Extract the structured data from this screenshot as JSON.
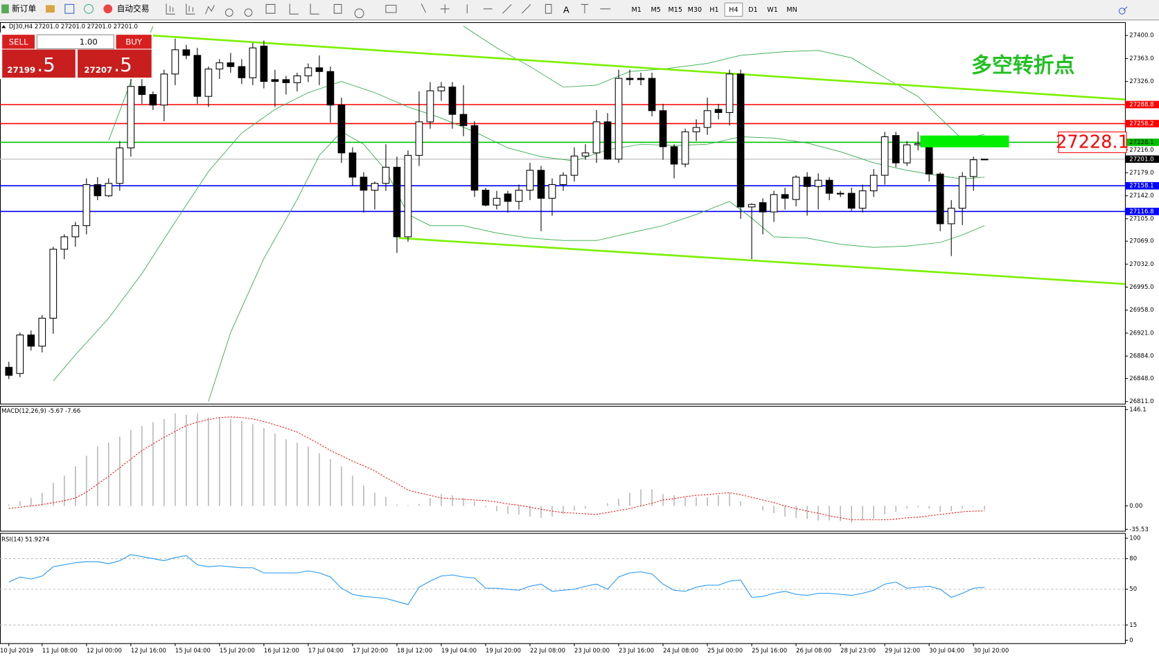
{
  "toolbar": {
    "new_order": "新订单",
    "auto_trading": "自动交易",
    "timeframes": [
      "M1",
      "M5",
      "M15",
      "M30",
      "H1",
      "H4",
      "D1",
      "W1",
      "MN"
    ],
    "active": "H4"
  },
  "trade_panel": {
    "sell": "SELL",
    "buy": "BUY",
    "lot": "1.00",
    "sell_price": "27199",
    "sell_pips": ".5",
    "buy_price": "27207",
    "buy_pips": ".5"
  },
  "chart_data": [
    {
      "type": "candlestick",
      "title": "DJ30,H4  27201.0 27201.0 27201.0 27201.0",
      "categories": [
        "10 Jul 2019",
        null,
        null,
        "11 Jul 08:00",
        null,
        null,
        null,
        "12 Jul 00:00",
        null,
        null,
        null,
        "12 Jul 16:00",
        null,
        null,
        null,
        "15 Jul 04:00",
        null,
        null,
        null,
        "15 Jul 20:00",
        null,
        null,
        null,
        "16 Jul 12:00",
        null,
        null,
        null,
        "17 Jul 04:00",
        null,
        null,
        null,
        "17 Jul 20:00",
        null,
        null,
        null,
        "18 Jul 12:00",
        null,
        null,
        null,
        "19 Jul 04:00",
        null,
        null,
        null,
        "19 Jul 20:00",
        null,
        null,
        null,
        "22 Jul 08:00",
        null,
        null,
        null,
        "23 Jul 00:00",
        null,
        null,
        null,
        "23 Jul 16:00",
        null,
        null,
        null,
        "24 Jul 08:00",
        null,
        null,
        null,
        "25 Jul 00:00",
        null,
        null,
        null,
        "25 Jul 16:00",
        null,
        null,
        null,
        "26 Jul 08:00",
        null,
        null,
        null,
        "28 Jul 23:00",
        null,
        null,
        null,
        "29 Jul 12:00",
        null,
        null,
        null,
        "30 Jul 04:00",
        null,
        null,
        null,
        "30 Jul 20:00",
        null
      ],
      "open": [
        26866,
        26856,
        26918,
        26900,
        26945,
        27056,
        27076,
        27094,
        27160,
        27142,
        27162,
        27219,
        27318,
        27305,
        27288,
        27338,
        27377,
        27368,
        27302,
        27346,
        27356,
        27350,
        27332,
        27383,
        27329,
        27329,
        27324,
        27335,
        27348,
        27342,
        27288,
        27211,
        27172,
        27151,
        27162,
        27188,
        27076,
        27207,
        27261,
        27311,
        27317,
        27273,
        27255,
        27151,
        27127,
        27145,
        27133,
        27151,
        27183,
        27138,
        27160,
        27175,
        27206,
        27211,
        27261,
        27201,
        27331,
        27331,
        27331,
        27279,
        27221,
        27193,
        27245,
        27252,
        27281,
        27276,
        27338,
        27124,
        27131,
        27116,
        27144,
        27136,
        27172,
        27157,
        27167,
        27146,
        27146,
        27122,
        27150,
        27175,
        27239,
        27195,
        27224,
        27220,
        27177,
        27097,
        27122,
        27173,
        27201
      ],
      "high": [
        26875,
        26922,
        26925,
        26950,
        27060,
        27080,
        27100,
        27170,
        27172,
        27170,
        27230,
        27340,
        27330,
        27310,
        27345,
        27395,
        27385,
        27380,
        27350,
        27362,
        27372,
        27362,
        27388,
        27392,
        27345,
        27335,
        27340,
        27355,
        27368,
        27350,
        27300,
        27220,
        27180,
        27165,
        27225,
        27205,
        27215,
        27310,
        27325,
        27325,
        27325,
        27320,
        27262,
        27155,
        27150,
        27150,
        27160,
        27195,
        27190,
        27170,
        27180,
        27220,
        27225,
        27280,
        27275,
        27345,
        27345,
        27340,
        27340,
        27290,
        27225,
        27250,
        27265,
        27300,
        27290,
        27345,
        27345,
        27130,
        27138,
        27150,
        27155,
        27175,
        27180,
        27178,
        27172,
        27150,
        27155,
        27160,
        27185,
        27245,
        27245,
        27230,
        27245,
        27228,
        27180,
        27135,
        27180,
        27205,
        27201
      ],
      "low": [
        26847,
        26850,
        26893,
        26890,
        26920,
        27040,
        27060,
        27080,
        27135,
        27140,
        27150,
        27205,
        27290,
        27280,
        27262,
        27320,
        27362,
        27290,
        27285,
        27330,
        27340,
        27322,
        27320,
        27315,
        27285,
        27305,
        27310,
        27325,
        27320,
        27260,
        27195,
        27158,
        27115,
        27120,
        27150,
        27050,
        27068,
        27190,
        27250,
        27295,
        27250,
        27238,
        27140,
        27125,
        27120,
        27115,
        27120,
        27135,
        27085,
        27110,
        27150,
        27165,
        27200,
        27195,
        27200,
        27195,
        27320,
        27320,
        27270,
        27200,
        27170,
        27188,
        27230,
        27240,
        27265,
        27255,
        27105,
        27040,
        27080,
        27100,
        27120,
        27125,
        27110,
        27120,
        27135,
        27140,
        27118,
        27115,
        27140,
        27160,
        27188,
        27190,
        27215,
        27165,
        27085,
        27045,
        27095,
        27150,
        27201
      ],
      "close": [
        26853,
        26918,
        26900,
        26945,
        27056,
        27076,
        27094,
        27160,
        27142,
        27162,
        27219,
        27318,
        27305,
        27288,
        27338,
        27377,
        27368,
        27302,
        27346,
        27356,
        27350,
        27332,
        27380,
        27326,
        27326,
        27324,
        27335,
        27348,
        27342,
        27288,
        27211,
        27172,
        27151,
        27162,
        27188,
        27076,
        27207,
        27261,
        27311,
        27317,
        27273,
        27255,
        27151,
        27127,
        27138,
        27133,
        27151,
        27183,
        27138,
        27160,
        27175,
        27206,
        27211,
        27261,
        27201,
        27331,
        27329,
        27329,
        27279,
        27221,
        27193,
        27245,
        27252,
        27279,
        27276,
        27338,
        27124,
        27128,
        27116,
        27144,
        27138,
        27172,
        27157,
        27167,
        27146,
        27146,
        27122,
        27150,
        27175,
        27237,
        27195,
        27224,
        27226,
        27177,
        27097,
        27122,
        27173,
        27200,
        27201
      ],
      "ylim": [
        26811,
        27400
      ],
      "yticks": [
        {
          "value": 27400,
          "label": "27400.0"
        },
        {
          "value": 27363,
          "label": "27363.0"
        },
        {
          "value": 27326,
          "label": "27326.0"
        },
        {
          "value": 27216,
          "label": "27216.0"
        },
        {
          "value": 27179,
          "label": "27179.0"
        },
        {
          "value": 27142,
          "label": "27142.0"
        },
        {
          "value": 27105,
          "label": "27105.0"
        },
        {
          "value": 27069,
          "label": "27069.0"
        },
        {
          "value": 27032,
          "label": "27032.0"
        },
        {
          "value": 26995,
          "label": "26995.0"
        },
        {
          "value": 26958,
          "label": "26958.0"
        },
        {
          "value": 26921,
          "label": "26921.0"
        },
        {
          "value": 26884,
          "label": "26884.0"
        },
        {
          "value": 26848,
          "label": "26848.0"
        },
        {
          "value": 26811,
          "label": "26811.0"
        }
      ],
      "bands": [
        {
          "color": "#2ea84a",
          "x": [
            9,
            11,
            13,
            14,
            41,
            44,
            47,
            50,
            53,
            56,
            59,
            63,
            66,
            70,
            73,
            76,
            79,
            82,
            84,
            86,
            88
          ],
          "values": [
            27231,
            27326,
            27415,
            null,
            27415,
            27380,
            27350,
            27317,
            27320,
            27342,
            27346,
            27355,
            27368,
            27374,
            27376,
            27364,
            27332,
            27302,
            27267,
            27233,
            27241
          ]
        },
        {
          "color": "#2ea84a",
          "x": [
            4,
            6,
            9,
            12,
            15,
            18,
            21,
            24,
            27,
            30,
            33,
            36,
            39,
            42,
            45,
            48,
            51,
            54,
            57,
            60,
            63,
            66,
            69,
            72,
            75,
            78,
            81,
            84,
            86,
            88
          ],
          "values": [
            26844,
            26886,
            26945,
            27017,
            27100,
            27181,
            27243,
            27281,
            27308,
            27326,
            27308,
            27285,
            27267,
            27245,
            27219,
            27205,
            27198,
            27216,
            27225,
            27223,
            27225,
            27237,
            27235,
            27227,
            27213,
            27195,
            27183,
            27174,
            27169,
            27172
          ]
        },
        {
          "color": "#2ea84a",
          "x": [
            18,
            20,
            23,
            26,
            28,
            30,
            32,
            34,
            36,
            38,
            41,
            44,
            47,
            50,
            53,
            56,
            59,
            62,
            65,
            67,
            69,
            72,
            75,
            78,
            81,
            84,
            86,
            88
          ],
          "values": [
            26811,
            26922,
            27041,
            27136,
            27207,
            27245,
            27225,
            27183,
            27112,
            27094,
            27094,
            27082,
            27074,
            27070,
            27070,
            27082,
            27094,
            27112,
            27133,
            27106,
            27076,
            27074,
            27064,
            27059,
            27061,
            27067,
            27079,
            27094
          ]
        }
      ],
      "channels": [
        {
          "color": "#7cf000",
          "x": [
            12.9,
            100.7
          ],
          "values": [
            27400,
            27297
          ]
        },
        {
          "color": "#7cf000",
          "x": [
            35.2,
            100.7
          ],
          "values": [
            27074,
            27000
          ]
        }
      ],
      "levels": [
        {
          "value": 27288.8,
          "color": "#ff0000"
        },
        {
          "value": 27258.2,
          "color": "#ff0000"
        },
        {
          "value": 27228.1,
          "color": "#00c000"
        },
        {
          "value": 27201,
          "label": "27201.0",
          "color": "#c8c8c8"
        },
        {
          "value": 27158.1,
          "color": "#0000ff"
        },
        {
          "value": 27116.8,
          "color": "#0000ff"
        }
      ],
      "zone": {
        "color": "#00ee00",
        "x": [
          82.2,
          90.2
        ],
        "values": [
          27239,
          27220
        ]
      },
      "annotation": {
        "text": "多空转折点",
        "color": "#22c022"
      }
    },
    {
      "type": "macd",
      "title": "MACD(12,26,9) -5.67 -7.66",
      "ylim": [
        -35.53,
        146.1
      ],
      "yticks": [
        146.1,
        {
          "value": 0,
          "label": "0.00"
        },
        -35.53
      ],
      "series": [
        {
          "color": "#b8b8b8",
          "values": [
            2,
            7,
            12,
            20,
            35,
            46,
            60,
            76,
            90,
            96,
            105,
            115,
            121,
            127,
            132,
            140,
            138,
            140,
            134,
            134,
            132,
            129,
            124,
            118,
            110,
            101,
            96,
            90,
            80,
            71,
            60,
            46,
            31,
            20,
            14,
            2,
            1,
            3,
            12,
            18,
            16,
            12,
            7,
            -2,
            -8,
            -12,
            -13,
            -16,
            -18,
            -16,
            -12,
            -7,
            -4,
            0,
            4,
            11,
            20,
            25,
            25,
            18,
            16,
            13,
            13,
            13,
            16,
            20,
            7,
            0,
            -7,
            -11,
            -16,
            -18,
            -20,
            -22,
            -22,
            -23,
            -25,
            -22,
            -19,
            -13,
            -9,
            -4,
            -2,
            -4,
            -9,
            -8,
            -4,
            -1,
            -5.67
          ]
        },
        {
          "color": "#ff0000",
          "values": [
            -4,
            -2,
            0,
            2,
            5,
            8,
            12,
            21,
            33,
            45,
            58,
            71,
            84,
            94,
            104,
            113,
            122,
            127,
            131,
            134,
            135,
            134,
            132,
            128,
            123,
            118,
            112,
            103,
            94,
            84,
            76,
            68,
            61,
            53,
            43,
            34,
            24,
            20,
            16,
            12,
            11,
            10,
            9,
            8,
            6,
            3,
            1,
            -2,
            -5,
            -8,
            -10,
            -11,
            -12,
            -13,
            -10,
            -7,
            -4,
            0,
            4,
            9,
            11,
            14,
            16,
            17,
            19,
            20,
            17,
            13,
            9,
            5,
            0,
            -4,
            -8,
            -11,
            -15,
            -18,
            -21,
            -21,
            -21,
            -21,
            -20,
            -18,
            -17,
            -15,
            -13,
            -11,
            -9,
            -8,
            -7.66
          ]
        }
      ]
    },
    {
      "type": "rsi",
      "title": "RSI(14) 51.9274",
      "ylim": [
        0,
        100
      ],
      "yticks": [
        100,
        80,
        50,
        15,
        0
      ],
      "series": [
        {
          "color": "#2196f3",
          "values": [
            57,
            62,
            60,
            63,
            72,
            74,
            76,
            77,
            77,
            75,
            78,
            84,
            82,
            80,
            78,
            81,
            83,
            74,
            72,
            73,
            72,
            71,
            71,
            66,
            66,
            66,
            66,
            68,
            66,
            62,
            51,
            45,
            43,
            42,
            41,
            38,
            35,
            52,
            58,
            63,
            64,
            62,
            61,
            51,
            51,
            50,
            49,
            53,
            55,
            48,
            49,
            50,
            53,
            55,
            50,
            62,
            66,
            67,
            65,
            55,
            49,
            48,
            52,
            54,
            54,
            58,
            59,
            42,
            43,
            46,
            48,
            45,
            44,
            46,
            46,
            45,
            44,
            46,
            49,
            55,
            57,
            51,
            52,
            53,
            50,
            42,
            46,
            51,
            51.9274
          ]
        }
      ]
    }
  ]
}
